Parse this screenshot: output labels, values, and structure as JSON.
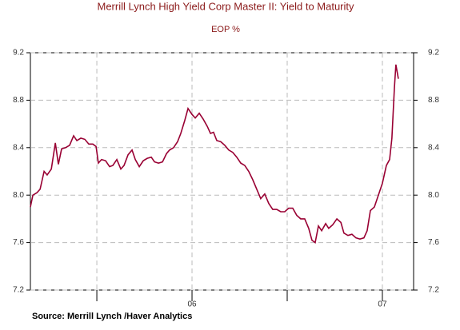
{
  "chart_data": {
    "type": "line",
    "title": "Merrill Lynch High Yield Corp Master II: Yield to Maturity",
    "subtitle": "EOP %",
    "source": "Source:  Merrill Lynch /Haver Analytics",
    "x": [
      2005.151,
      2005.164,
      2005.185,
      2005.202,
      2005.223,
      2005.239,
      2005.261,
      2005.282,
      2005.298,
      2005.315,
      2005.336,
      2005.357,
      2005.378,
      2005.395,
      2005.416,
      2005.437,
      2005.458,
      2005.479,
      2005.496,
      2005.508,
      2005.525,
      2005.546,
      2005.567,
      2005.584,
      2005.605,
      2005.626,
      2005.643,
      2005.664,
      2005.685,
      2005.702,
      2005.723,
      2005.744,
      2005.765,
      2005.786,
      2005.803,
      2005.824,
      2005.845,
      2005.866,
      2005.882,
      2005.903,
      2005.924,
      2005.941,
      2005.962,
      2005.979,
      2006.0,
      2006.017,
      2006.038,
      2006.059,
      2006.08,
      2006.097,
      2006.113,
      2006.13,
      2006.151,
      2006.172,
      2006.193,
      2006.214,
      2006.235,
      2006.256,
      2006.277,
      2006.298,
      2006.319,
      2006.34,
      2006.361,
      2006.382,
      2006.403,
      2006.424,
      2006.445,
      2006.466,
      2006.487,
      2006.508,
      2006.529,
      2006.55,
      2006.571,
      2006.592,
      2006.613,
      2006.63,
      2006.647,
      2006.664,
      2006.681,
      2006.702,
      2006.718,
      2006.739,
      2006.761,
      2006.782,
      2006.798,
      2006.819,
      2006.84,
      2006.861,
      2006.882,
      2006.903,
      2006.92,
      2006.937,
      2006.958,
      2006.979,
      2007.0,
      2007.021,
      2007.038,
      2007.05,
      2007.063,
      2007.071,
      2007.084
    ],
    "series": [
      {
        "color": "#990033",
        "values": [
          7.9,
          8.0,
          8.02,
          8.05,
          8.2,
          8.17,
          8.22,
          8.44,
          8.26,
          8.39,
          8.4,
          8.42,
          8.5,
          8.46,
          8.48,
          8.47,
          8.43,
          8.43,
          8.41,
          8.27,
          8.3,
          8.29,
          8.24,
          8.25,
          8.3,
          8.22,
          8.25,
          8.34,
          8.38,
          8.3,
          8.24,
          8.29,
          8.31,
          8.32,
          8.28,
          8.27,
          8.28,
          8.35,
          8.38,
          8.4,
          8.45,
          8.52,
          8.63,
          8.73,
          8.68,
          8.65,
          8.69,
          8.64,
          8.58,
          8.52,
          8.53,
          8.46,
          8.45,
          8.42,
          8.38,
          8.36,
          8.32,
          8.27,
          8.25,
          8.2,
          8.13,
          8.05,
          7.97,
          8.01,
          7.93,
          7.88,
          7.88,
          7.86,
          7.86,
          7.89,
          7.89,
          7.83,
          7.8,
          7.8,
          7.72,
          7.62,
          7.6,
          7.74,
          7.7,
          7.76,
          7.72,
          7.75,
          7.8,
          7.77,
          7.68,
          7.66,
          7.67,
          7.64,
          7.63,
          7.64,
          7.7,
          7.87,
          7.9,
          8.0,
          8.1,
          8.25,
          8.3,
          8.48,
          8.9,
          9.1,
          8.98
        ]
      }
    ],
    "xlim": [
      2005.151,
      2007.164
    ],
    "xticks": [
      {
        "value": 2006,
        "label": "06"
      },
      {
        "value": 2007,
        "label": "07"
      }
    ],
    "xgrid": [
      2005.5,
      2006,
      2006.5,
      2007
    ],
    "ylim": [
      7.2,
      9.2
    ],
    "yticks": [
      9.2,
      8.8,
      8.4,
      {
        "value": 8,
        "label": "8.0"
      },
      7.6,
      7.2
    ],
    "y2lim": [
      7.2,
      9.2
    ],
    "y2ticks": [
      9.2,
      8.8,
      8.4,
      {
        "value": 8,
        "label": "8.0"
      },
      7.6,
      7.2
    ],
    "grid": true
  }
}
